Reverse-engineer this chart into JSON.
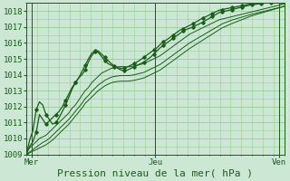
{
  "xlabel": "Pression niveau de la mer( hPa )",
  "bg_color": "#cce8d4",
  "plot_bg_color": "#cce8d4",
  "grid_color": "#99cc99",
  "line_color": "#1a5c1a",
  "ylim": [
    1009,
    1018.5
  ],
  "xlim": [
    0,
    96
  ],
  "xtick_positions": [
    2,
    48,
    94
  ],
  "xtick_labels": [
    "Mer",
    "Jeu",
    "Ven"
  ],
  "ytick_positions": [
    1009,
    1010,
    1011,
    1012,
    1013,
    1014,
    1015,
    1016,
    1017,
    1018
  ],
  "vline_positions": [
    2,
    48,
    94
  ],
  "xlabel_fontsize": 8,
  "tick_fontsize": 6.5,
  "series_smooth": [
    [
      1009.2,
      1009.4,
      1009.6,
      1009.8,
      1010.0,
      1010.1,
      1010.2,
      1010.4,
      1010.6,
      1010.8,
      1011.0,
      1011.2,
      1011.4,
      1011.6,
      1011.9,
      1012.1,
      1012.4,
      1012.7,
      1013.0,
      1013.2,
      1013.5,
      1013.7,
      1013.9,
      1014.1,
      1014.2,
      1014.3,
      1014.4,
      1014.45,
      1014.5,
      1014.52,
      1014.5,
      1014.5,
      1014.52,
      1014.55,
      1014.6,
      1014.65,
      1014.7,
      1014.8,
      1014.9,
      1015.0,
      1015.1,
      1015.2,
      1015.35,
      1015.5,
      1015.65,
      1015.8,
      1015.95,
      1016.1,
      1016.25,
      1016.4,
      1016.55,
      1016.65,
      1016.75,
      1016.85,
      1016.95,
      1017.05,
      1017.15,
      1017.25,
      1017.35,
      1017.45,
      1017.5,
      1017.55,
      1017.6,
      1017.65,
      1017.7,
      1017.75,
      1017.8,
      1017.85,
      1017.9,
      1017.95,
      1018.0,
      1018.05,
      1018.1,
      1018.15,
      1018.2,
      1018.25,
      1018.3,
      1018.35,
      1018.4,
      1018.45
    ],
    [
      1009.0,
      1009.15,
      1009.3,
      1009.45,
      1009.6,
      1009.75,
      1009.85,
      1010.0,
      1010.2,
      1010.4,
      1010.6,
      1010.8,
      1011.0,
      1011.2,
      1011.45,
      1011.7,
      1011.95,
      1012.2,
      1012.5,
      1012.7,
      1012.95,
      1013.15,
      1013.35,
      1013.5,
      1013.65,
      1013.75,
      1013.85,
      1013.9,
      1013.93,
      1013.95,
      1013.95,
      1013.95,
      1013.96,
      1014.0,
      1014.05,
      1014.1,
      1014.15,
      1014.25,
      1014.35,
      1014.45,
      1014.55,
      1014.65,
      1014.8,
      1014.95,
      1015.1,
      1015.25,
      1015.4,
      1015.55,
      1015.7,
      1015.85,
      1016.0,
      1016.12,
      1016.24,
      1016.36,
      1016.48,
      1016.6,
      1016.72,
      1016.84,
      1016.96,
      1017.08,
      1017.2,
      1017.28,
      1017.36,
      1017.44,
      1017.5,
      1017.56,
      1017.62,
      1017.68,
      1017.74,
      1017.8,
      1017.85,
      1017.9,
      1017.95,
      1018.0,
      1018.05,
      1018.1,
      1018.15,
      1018.2,
      1018.25,
      1018.3
    ],
    [
      1009.0,
      1009.1,
      1009.2,
      1009.3,
      1009.4,
      1009.5,
      1009.6,
      1009.75,
      1009.9,
      1010.1,
      1010.3,
      1010.5,
      1010.7,
      1010.9,
      1011.15,
      1011.4,
      1011.65,
      1011.9,
      1012.2,
      1012.4,
      1012.6,
      1012.8,
      1013.0,
      1013.15,
      1013.3,
      1013.4,
      1013.5,
      1013.55,
      1013.58,
      1013.6,
      1013.6,
      1013.6,
      1013.62,
      1013.65,
      1013.7,
      1013.75,
      1013.8,
      1013.9,
      1014.0,
      1014.1,
      1014.2,
      1014.3,
      1014.45,
      1014.6,
      1014.75,
      1014.9,
      1015.05,
      1015.2,
      1015.35,
      1015.5,
      1015.65,
      1015.78,
      1015.91,
      1016.04,
      1016.17,
      1016.3,
      1016.43,
      1016.56,
      1016.69,
      1016.82,
      1016.95,
      1017.04,
      1017.13,
      1017.22,
      1017.3,
      1017.38,
      1017.46,
      1017.54,
      1017.62,
      1017.7,
      1017.76,
      1017.82,
      1017.88,
      1017.94,
      1018.0,
      1018.06,
      1018.12,
      1018.18,
      1018.24,
      1018.3
    ]
  ],
  "series_marked_1": [
    1009.0,
    1009.5,
    1009.8,
    1010.4,
    1011.5,
    1011.2,
    1010.9,
    1011.1,
    1011.3,
    1011.5,
    1011.7,
    1012.0,
    1012.4,
    1012.8,
    1013.2,
    1013.5,
    1013.8,
    1014.0,
    1014.3,
    1014.8,
    1015.2,
    1015.45,
    1015.5,
    1015.3,
    1015.1,
    1014.9,
    1014.7,
    1014.55,
    1014.4,
    1014.3,
    1014.25,
    1014.3,
    1014.4,
    1014.5,
    1014.6,
    1014.7,
    1014.8,
    1014.95,
    1015.1,
    1015.3,
    1015.5,
    1015.7,
    1015.85,
    1016.0,
    1016.15,
    1016.3,
    1016.45,
    1016.6,
    1016.75,
    1016.85,
    1016.92,
    1017.0,
    1017.1,
    1017.2,
    1017.3,
    1017.42,
    1017.54,
    1017.66,
    1017.78,
    1017.9,
    1017.96,
    1018.0,
    1018.05,
    1018.1,
    1018.15,
    1018.2,
    1018.25,
    1018.3,
    1018.35,
    1018.4,
    1018.42,
    1018.45,
    1018.47,
    1018.5,
    1018.52,
    1018.54,
    1018.56,
    1018.58,
    1018.6,
    1018.62
  ],
  "series_marked_2": [
    1009.0,
    1009.9,
    1010.5,
    1011.8,
    1012.3,
    1012.1,
    1011.5,
    1011.2,
    1010.9,
    1011.0,
    1011.3,
    1011.7,
    1012.1,
    1012.6,
    1013.1,
    1013.5,
    1013.8,
    1014.2,
    1014.6,
    1015.0,
    1015.35,
    1015.5,
    1015.4,
    1015.15,
    1014.9,
    1014.7,
    1014.6,
    1014.5,
    1014.45,
    1014.4,
    1014.42,
    1014.5,
    1014.6,
    1014.7,
    1014.82,
    1014.95,
    1015.1,
    1015.25,
    1015.4,
    1015.55,
    1015.7,
    1015.9,
    1016.1,
    1016.2,
    1016.35,
    1016.5,
    1016.65,
    1016.8,
    1016.9,
    1017.0,
    1017.1,
    1017.2,
    1017.32,
    1017.44,
    1017.56,
    1017.65,
    1017.75,
    1017.85,
    1017.95,
    1018.05,
    1018.1,
    1018.14,
    1018.18,
    1018.22,
    1018.26,
    1018.3,
    1018.34,
    1018.38,
    1018.42,
    1018.46,
    1018.5,
    1018.52,
    1018.54,
    1018.56,
    1018.58,
    1018.6,
    1018.62,
    1018.64,
    1018.66,
    1018.68
  ]
}
